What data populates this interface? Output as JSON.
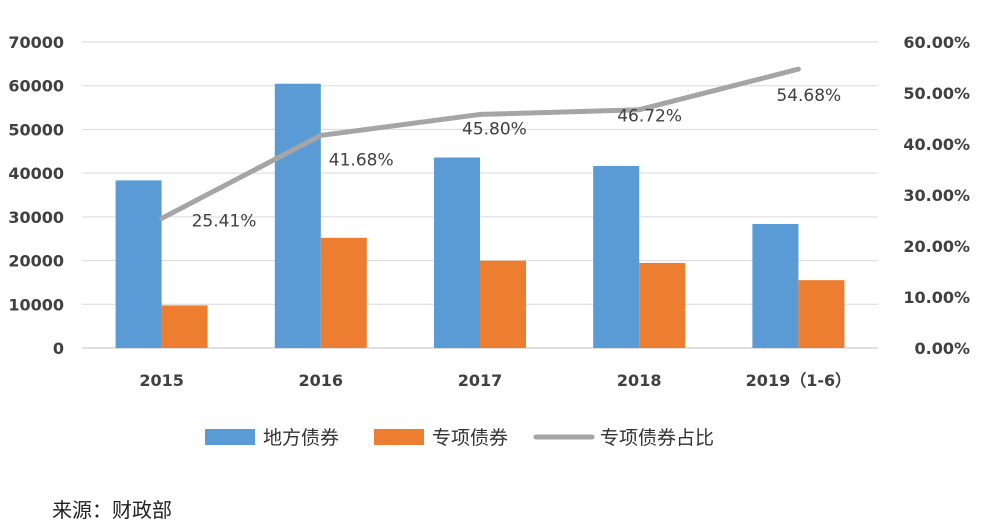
{
  "chart_data": {
    "type": "bar",
    "categories": [
      "2015",
      "2016",
      "2017",
      "2018",
      "2019（1-6）"
    ],
    "series": [
      {
        "name": "地方债券",
        "type": "bar",
        "axis": "left",
        "color": "#5B9BD5",
        "values": [
          38350,
          60458,
          43581,
          41652,
          28372
        ]
      },
      {
        "name": "专项债券",
        "type": "bar",
        "axis": "left",
        "color": "#ED7D31",
        "values": [
          9744,
          25199,
          19962,
          19459,
          15515
        ]
      },
      {
        "name": "专项债券占比",
        "type": "line",
        "axis": "right",
        "color": "#A5A5A5",
        "values": [
          25.41,
          41.68,
          45.8,
          46.72,
          54.68
        ],
        "labels": [
          "25.41%",
          "41.68%",
          "45.80%",
          "46.72%",
          "54.68%"
        ]
      }
    ],
    "y_left": {
      "min": 0,
      "max": 70000,
      "step": 10000,
      "ticks": [
        "0",
        "10000",
        "20000",
        "30000",
        "40000",
        "50000",
        "60000",
        "70000"
      ]
    },
    "y_right": {
      "min": 0,
      "max": 60,
      "step": 10,
      "ticks": [
        "0.00%",
        "10.00%",
        "20.00%",
        "30.00%",
        "40.00%",
        "50.00%",
        "60.00%"
      ]
    },
    "grid": true,
    "legend_position": "bottom"
  },
  "source": "来源：财政部"
}
